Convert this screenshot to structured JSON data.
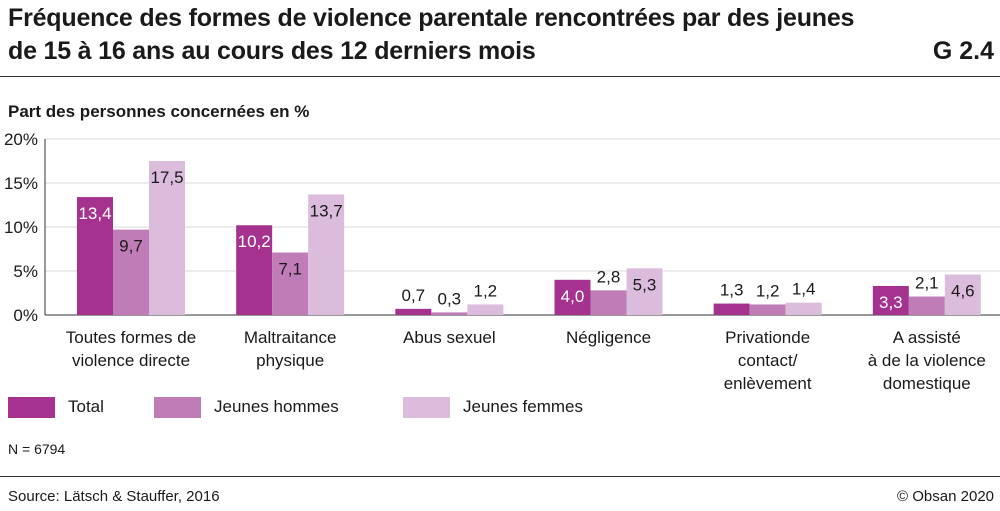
{
  "header": {
    "title_line1": "Fréquence des formes de violence parentale rencontrées par des jeunes",
    "title_line2": "de 15 à 16 ans au cours des 12 derniers mois",
    "chart_id": "G 2.4"
  },
  "footer": {
    "note": "N = 6794",
    "source": "Source: Lätsch & Stauffer, 2016",
    "copyright": "© Obsan 2020"
  },
  "chart_data": {
    "type": "bar",
    "title": "Fréquence des formes de violence parentale rencontrées par des jeunes de 15 à 16 ans au cours des 12 derniers mois",
    "ylabel": "Part des personnes concernées en %",
    "xlabel": "",
    "ylim": [
      0,
      20
    ],
    "yticks": [
      "0%",
      "5%",
      "10%",
      "15%",
      "20%"
    ],
    "ytick_values": [
      0,
      5,
      10,
      15,
      20
    ],
    "grid": true,
    "legend_position": "bottom-left",
    "categories": [
      [
        "Toutes formes de",
        "violence directe"
      ],
      [
        "Maltraitance",
        "physique"
      ],
      [
        "Abus sexuel"
      ],
      [
        "Négligence"
      ],
      [
        "Privationde",
        "contact/",
        "enlèvement"
      ],
      [
        "A assisté",
        "à de la violence",
        "domestique"
      ]
    ],
    "series": [
      {
        "name": "Total",
        "color": "#a5328f",
        "values": [
          13.4,
          10.2,
          0.7,
          4.0,
          1.3,
          3.3
        ],
        "labels": [
          "13,4",
          "10,2",
          "0,7",
          "4,0",
          "1,3",
          "3,3"
        ]
      },
      {
        "name": "Jeunes hommes",
        "color": "#c07cb6",
        "values": [
          9.7,
          7.1,
          0.3,
          2.8,
          1.2,
          2.1
        ],
        "labels": [
          "9,7",
          "7,1",
          "0,3",
          "2,8",
          "1,2",
          "2,1"
        ]
      },
      {
        "name": "Jeunes femmes",
        "color": "#dcbcdc",
        "values": [
          17.5,
          13.7,
          1.2,
          5.3,
          1.4,
          4.6
        ],
        "labels": [
          "17,5",
          "13,7",
          "1,2",
          "5,3",
          "1,4",
          "4,6"
        ]
      }
    ]
  }
}
